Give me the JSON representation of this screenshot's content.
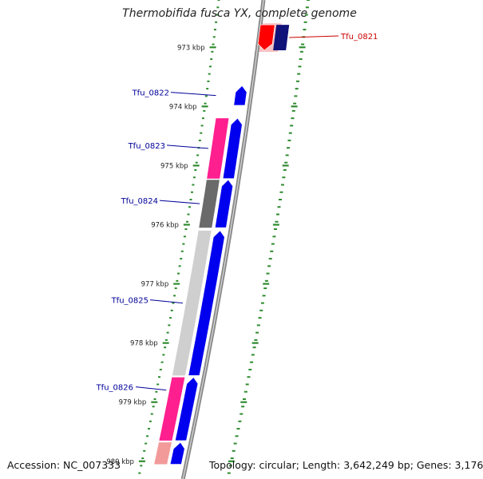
{
  "title": "Thermobifida fusca YX, complete genome",
  "footer": {
    "accession": "Accession: NC_007333",
    "summary": "Topology: circular; Length: 3,642,249 bp; Genes: 3,176"
  },
  "ruler": {
    "ticks": [
      {
        "kbp": 973,
        "label": "973 kbp"
      },
      {
        "kbp": 974,
        "label": "974 kbp"
      },
      {
        "kbp": 975,
        "label": "975 kbp"
      },
      {
        "kbp": 976,
        "label": "976 kbp"
      },
      {
        "kbp": 977,
        "label": "977 kbp"
      },
      {
        "kbp": 978,
        "label": "978 kbp"
      },
      {
        "kbp": 979,
        "label": "979 kbp"
      },
      {
        "kbp": 980,
        "label": "980 kbp"
      }
    ]
  },
  "genes": [
    {
      "name": "Tfu_0821",
      "start_kbp": 972.62,
      "end_kbp": 973.05,
      "strand": "minus",
      "selected": true
    },
    {
      "name": "Tfu_0822",
      "start_kbp": 973.65,
      "end_kbp": 973.98,
      "strand": "plus",
      "selected": false
    },
    {
      "name": "Tfu_0823",
      "start_kbp": 974.2,
      "end_kbp": 975.22,
      "strand": "plus",
      "selected": false
    },
    {
      "name": "Tfu_0824",
      "start_kbp": 975.24,
      "end_kbp": 976.05,
      "strand": "plus",
      "selected": false
    },
    {
      "name": "Tfu_0825",
      "start_kbp": 976.1,
      "end_kbp": 978.55,
      "strand": "plus",
      "selected": false
    },
    {
      "name": "Tfu_0826",
      "start_kbp": 978.58,
      "end_kbp": 979.65,
      "strand": "plus",
      "selected": false
    },
    {
      "name": "",
      "start_kbp": 979.68,
      "end_kbp": 980.05,
      "strand": "plus",
      "selected": false
    }
  ],
  "colors": {
    "plus_gene": "#0000ee",
    "minus_gene": "#11117a",
    "selected_gene": "#ff0000",
    "selected_label": "#cc0000",
    "gene_label": "#000099",
    "ruler_tick": "#2e8b2e",
    "gc_pink": "#ff1f8f",
    "gc_gray": "#6a6a6a",
    "gc_light": "#cfcfcf",
    "gc_salmon": "#f29a9a",
    "backbone": "#8a8a8a"
  }
}
